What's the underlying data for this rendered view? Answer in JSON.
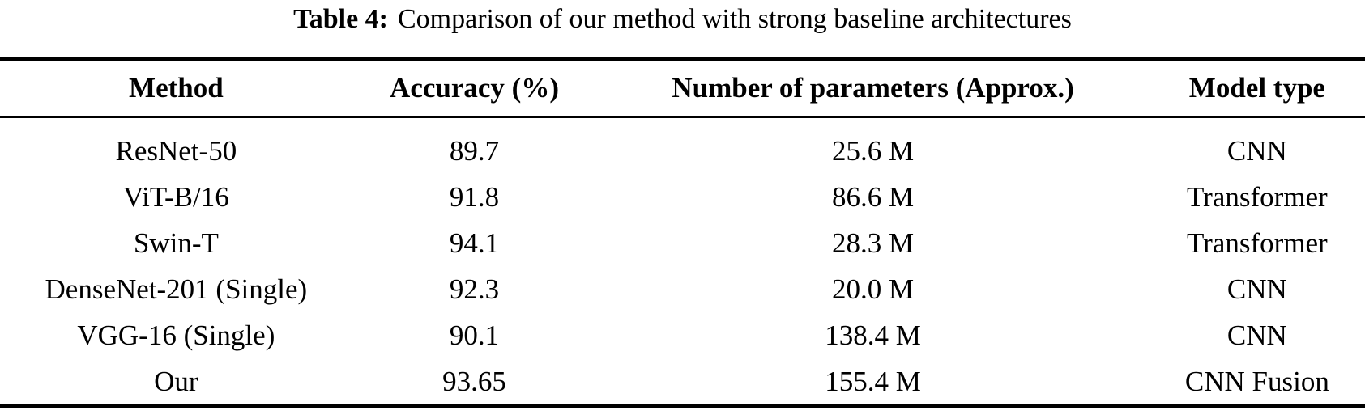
{
  "caption": {
    "label": "Table 4:",
    "text": "Comparison of our method with strong baseline architectures"
  },
  "table": {
    "columns": [
      "Method",
      "Accuracy (%)",
      "Number of parameters (Approx.)",
      "Model type"
    ],
    "rows": [
      {
        "method": "ResNet-50",
        "accuracy": "89.7",
        "params": "25.6 M",
        "model_type": "CNN"
      },
      {
        "method": "ViT-B/16",
        "accuracy": "91.8",
        "params": "86.6 M",
        "model_type": "Transformer"
      },
      {
        "method": "Swin-T",
        "accuracy": "94.1",
        "params": "28.3 M",
        "model_type": "Transformer"
      },
      {
        "method": "DenseNet-201 (Single)",
        "accuracy": "92.3",
        "params": "20.0 M",
        "model_type": "CNN"
      },
      {
        "method": "VGG-16 (Single)",
        "accuracy": "90.1",
        "params": "138.4 M",
        "model_type": "CNN"
      },
      {
        "method": "Our",
        "accuracy": "93.65",
        "params": "155.4 M",
        "model_type": "CNN Fusion"
      }
    ]
  },
  "colors": {
    "text": "#000000",
    "background": "#ffffff",
    "rule": "#000000"
  }
}
